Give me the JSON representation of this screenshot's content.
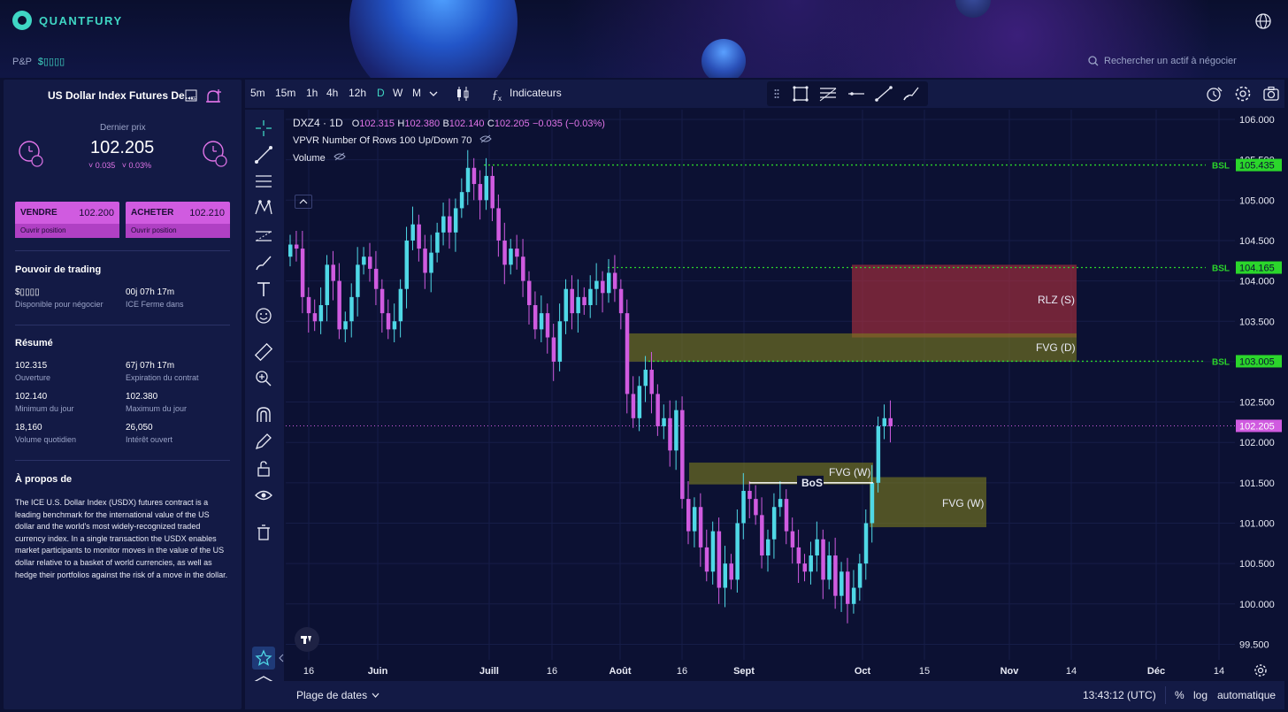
{
  "app": {
    "brand": "QUANTFURY",
    "pnp_label": "P&P",
    "pnp_value": "$▯▯▯▯",
    "search_placeholder": "Rechercher un actif à négocier"
  },
  "instrument": {
    "title": "US Dollar Index Futures De...",
    "last_price_label": "Dernier prix",
    "last_price": "102.205",
    "change_abs": "˅ 0.035",
    "change_pct": "˅ 0.03%",
    "sell": {
      "label": "VENDRE",
      "price": "102.200",
      "sub": "Ouvrir position"
    },
    "buy": {
      "label": "ACHETER",
      "price": "102.210",
      "sub": "Ouvrir position"
    }
  },
  "trading_power": {
    "title": "Pouvoir de trading",
    "available_value": "$▯▯▯▯",
    "available_label": "Disponible pour négocier",
    "close_value": "00j 07h 17m",
    "close_label": "ICE Ferme dans"
  },
  "summary": {
    "title": "Résumé",
    "items": [
      {
        "value": "102.315",
        "label": "Ouverture"
      },
      {
        "value": "67j 07h 17m",
        "label": "Expiration du contrat"
      },
      {
        "value": "102.140",
        "label": "Minimum du jour"
      },
      {
        "value": "102.380",
        "label": "Maximum du jour"
      },
      {
        "value": "18,160",
        "label": "Volume quotidien"
      },
      {
        "value": "26,050",
        "label": "Intérêt ouvert"
      }
    ]
  },
  "about": {
    "title": "À propos de",
    "text": "The ICE U.S. Dollar Index (USDX) futures contract is a leading benchmark for the international value of the US dollar and the world's most widely-recognized traded currency index. In a single transaction the USDX enables market participants to monitor moves in the value of the US dollar relative to a basket of world currencies, as well as hedge their portfolios against the risk of a move in the dollar."
  },
  "toolbar": {
    "timeframes": [
      "5m",
      "15m",
      "1h",
      "4h",
      "12h",
      "D",
      "W",
      "M"
    ],
    "active_timeframe": "D",
    "indicators_label": "Indicateurs"
  },
  "legend": {
    "symbol": "DXZ4 · 1D",
    "o_label": "O",
    "o": "102.315",
    "h_label": "H",
    "h": "102.380",
    "b_label": "B",
    "b": "102.140",
    "c_label": "C",
    "c": "102.205",
    "change": "−0.035 (−0.03%)",
    "vpvr": "VPVR Number Of Rows 100 Up/Down 70",
    "volume": "Volume"
  },
  "chart_data": {
    "type": "candlestick",
    "y_ticks": [
      "106.000",
      "105.500",
      "105.000",
      "104.500",
      "104.000",
      "103.500",
      "103.000",
      "102.500",
      "102.000",
      "101.500",
      "101.000",
      "100.500",
      "100.000",
      "99.500"
    ],
    "x_ticks": [
      "16",
      "Juin",
      "Juill",
      "16",
      "Août",
      "16",
      "Sept",
      "Oct",
      "15",
      "Nov",
      "14",
      "Déc",
      "14"
    ],
    "ylim": [
      99.4,
      106.1
    ],
    "price_line": 102.205,
    "price_label": "102.205",
    "levels": [
      {
        "label": "BSL",
        "value": 105.435,
        "value_label": "105.435"
      },
      {
        "label": "BSL",
        "value": 104.165,
        "value_label": "104.165"
      },
      {
        "label": "BSL",
        "value": 103.005,
        "value_label": "103.005"
      }
    ],
    "zones": [
      {
        "label": "RLZ (S)",
        "top": 104.2,
        "bottom": 103.3,
        "color": "#b0313d"
      },
      {
        "label": "FVG (D)",
        "top": 103.35,
        "bottom": 103.0,
        "color": "#7a7a1e"
      },
      {
        "label": "FVG (W)",
        "top": 101.75,
        "bottom": 101.48,
        "color": "#7a7a1e"
      },
      {
        "label": "FVG (W)",
        "top": 101.57,
        "bottom": 100.95,
        "color": "#7a7a1e"
      }
    ],
    "bos_label": "BoS",
    "bos_value": 101.5
  },
  "bottom": {
    "range_label": "Plage de dates",
    "time": "13:43:12 (UTC)",
    "pct": "%",
    "log": "log",
    "auto": "automatique"
  },
  "colors": {
    "bull": "#4fd8e6",
    "bear": "#d05be0",
    "accent": "#3fd6c4",
    "bsl": "#2bd62b"
  }
}
